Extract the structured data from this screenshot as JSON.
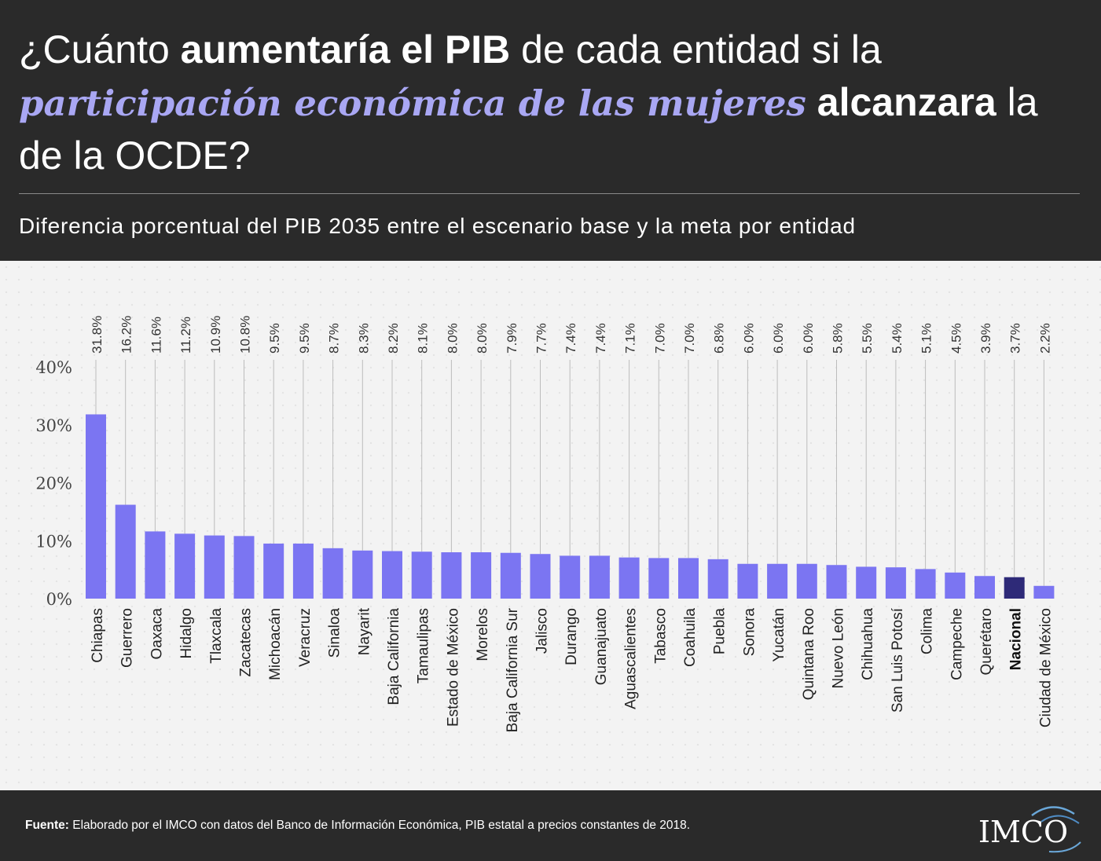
{
  "header": {
    "title_parts": [
      {
        "text": "¿Cuánto ",
        "style": "normal"
      },
      {
        "text": "aumentaría el PIB",
        "style": "bold"
      },
      {
        "text": " de cada entidad si la ",
        "style": "normal"
      },
      {
        "text": "participación económica de las mujeres",
        "style": "highlight"
      },
      {
        "text": " ",
        "style": "normal"
      },
      {
        "text": "alcanzara",
        "style": "bold"
      },
      {
        "text": " la de la OCDE?",
        "style": "normal"
      }
    ],
    "subtitle": "Diferencia porcentual del PIB 2035 entre el escenario base y la meta por entidad"
  },
  "colors": {
    "bar": "#7b75f2",
    "bar_highlight": "#2e2a78",
    "title_highlight": "#a9a7f3",
    "background": "#2a2a2a"
  },
  "chart_data": {
    "type": "bar",
    "title": "",
    "xlabel": "",
    "ylabel": "",
    "ylim": [
      0,
      40
    ],
    "yticks": [
      0,
      10,
      20,
      30,
      40
    ],
    "ytick_labels": [
      "0%",
      "10%",
      "20%",
      "30%",
      "40%"
    ],
    "grid": "vertical lines above bars",
    "highlight_category": "Nacional",
    "categories": [
      "Chiapas",
      "Guerrero",
      "Oaxaca",
      "Hidalgo",
      "Tlaxcala",
      "Zacatecas",
      "Michoacán",
      "Veracruz",
      "Sinaloa",
      "Nayarit",
      "Baja California",
      "Tamaulipas",
      "Estado de México",
      "Morelos",
      "Baja California Sur",
      "Jalisco",
      "Durango",
      "Guanajuato",
      "Aguascalientes",
      "Tabasco",
      "Coahuila",
      "Puebla",
      "Sonora",
      "Yucatán",
      "Quintana Roo",
      "Nuevo León",
      "Chihuahua",
      "San Luis Potosí",
      "Colima",
      "Campeche",
      "Querétaro",
      "Nacional",
      "Ciudad de México"
    ],
    "values": [
      31.8,
      16.2,
      11.6,
      11.2,
      10.9,
      10.8,
      9.5,
      9.5,
      8.7,
      8.3,
      8.2,
      8.1,
      8.0,
      8.0,
      7.9,
      7.7,
      7.4,
      7.4,
      7.1,
      7.0,
      7.0,
      6.8,
      6.0,
      6.0,
      6.0,
      5.8,
      5.5,
      5.4,
      5.1,
      4.5,
      3.9,
      3.7,
      2.2
    ],
    "value_labels": [
      "31.8%",
      "16.2%",
      "11.6%",
      "11.2%",
      "10.9%",
      "10.8%",
      "9.5%",
      "9.5%",
      "8.7%",
      "8.3%",
      "8.2%",
      "8.1%",
      "8.0%",
      "8.0%",
      "7.9%",
      "7.7%",
      "7.4%",
      "7.4%",
      "7.1%",
      "7.0%",
      "7.0%",
      "6.8%",
      "6.0%",
      "6.0%",
      "6.0%",
      "5.8%",
      "5.5%",
      "5.4%",
      "5.1%",
      "4.5%",
      "3.9%",
      "3.7%",
      "2.2%"
    ]
  },
  "footer": {
    "source_label": "Fuente:",
    "source_text": " Elaborado por el IMCO con datos del Banco de Información Económica, PIB estatal a precios constantes de 2018.",
    "logo_text": "IMCO"
  }
}
